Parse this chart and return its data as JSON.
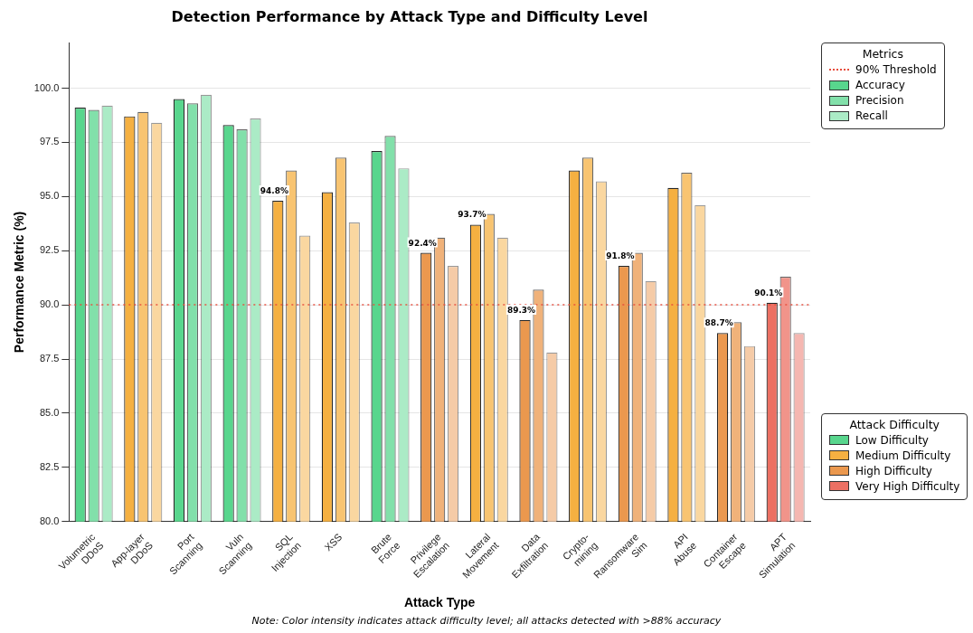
{
  "chart_data": {
    "type": "bar",
    "title": "Detection Performance by Attack Type and Difficulty Level",
    "xlabel": "Attack Type",
    "ylabel": "Performance Metric (%)",
    "legend_title": "Metrics",
    "categories": [
      "Volumetric\nDDoS",
      "App-layer\nDDoS",
      "Port\nScanning",
      "Vuln\nScanning",
      "SQL\nInjection",
      "XSS",
      "Brute\nForce",
      "Privilege\nEscalation",
      "Lateral\nMovement",
      "Data\nExfiltration",
      "Crypto-\nmining",
      "Ransomware\nSim",
      "API\nAbuse",
      "Container\nEscape",
      "APT\nSimulation"
    ],
    "series": [
      {
        "name": "Accuracy",
        "colors": [
          "#58d68d",
          "#f5b041",
          "#58d68d",
          "#58d68d",
          "#f5b041",
          "#f5b041",
          "#58d68d",
          "#eb984e",
          "#f5b041",
          "#eb984e",
          "#f5b041",
          "#eb984e",
          "#f5b041",
          "#eb984e",
          "#ec7063"
        ],
        "values": [
          99.1,
          98.7,
          99.5,
          98.3,
          94.8,
          95.2,
          97.1,
          92.4,
          93.7,
          89.3,
          96.2,
          91.8,
          95.4,
          88.7,
          90.1
        ],
        "value_labels": [
          null,
          null,
          null,
          null,
          "94.8%",
          null,
          null,
          "92.4%",
          "93.7%",
          "89.3%",
          null,
          "91.8%",
          null,
          "88.7%",
          "90.1%"
        ]
      },
      {
        "name": "Precision",
        "colors": [
          "#82e0aa",
          "#f8c471",
          "#82e0aa",
          "#82e0aa",
          "#f8c471",
          "#f8c471",
          "#82e0aa",
          "#f0b27a",
          "#f8c471",
          "#f0b27a",
          "#f8c471",
          "#f0b27a",
          "#f8c471",
          "#f0b27a",
          "#f1948a"
        ],
        "values": [
          99.0,
          98.9,
          99.3,
          98.1,
          96.2,
          96.8,
          97.8,
          93.1,
          94.2,
          90.7,
          96.8,
          92.4,
          96.1,
          89.2,
          91.3
        ]
      },
      {
        "name": "Recall",
        "colors": [
          "#abebc6",
          "#fad7a0",
          "#abebc6",
          "#abebc6",
          "#fad7a0",
          "#fad7a0",
          "#abebc6",
          "#f5cba7",
          "#fad7a0",
          "#f5cba7",
          "#fad7a0",
          "#f5cba7",
          "#fad7a0",
          "#f5cba7",
          "#f5b7b1"
        ],
        "values": [
          99.2,
          98.4,
          99.7,
          98.6,
          93.2,
          93.8,
          96.3,
          91.8,
          93.1,
          87.8,
          95.7,
          91.1,
          94.6,
          88.1,
          88.7
        ]
      }
    ],
    "ylim": [
      80,
      102.1
    ],
    "yticks": [
      {
        "value": 80,
        "label": "80.0"
      },
      {
        "value": 82.5,
        "label": "82.5"
      },
      {
        "value": 85,
        "label": "85.0"
      },
      {
        "value": 87.5,
        "label": "87.5"
      },
      {
        "value": 90,
        "label": "90.0"
      },
      {
        "value": 92.5,
        "label": "92.5"
      },
      {
        "value": 95,
        "label": "95.0"
      },
      {
        "value": 97.5,
        "label": "97.5"
      },
      {
        "value": 100,
        "label": "100.0"
      }
    ],
    "ref_lines": [
      {
        "axis": "y",
        "value": 90,
        "label": "90% Threshold",
        "color": "#e74c3c",
        "line_style": "dotted"
      }
    ],
    "grid": "y",
    "legend": "top right",
    "annotations": [
      "Attack Difficulty",
      "Low Difficulty",
      "Medium Difficulty",
      "High Difficulty",
      "Very High Difficulty",
      "Note: Color intensity indicates attack difficulty level; all attacks detected with >88% accuracy"
    ]
  }
}
